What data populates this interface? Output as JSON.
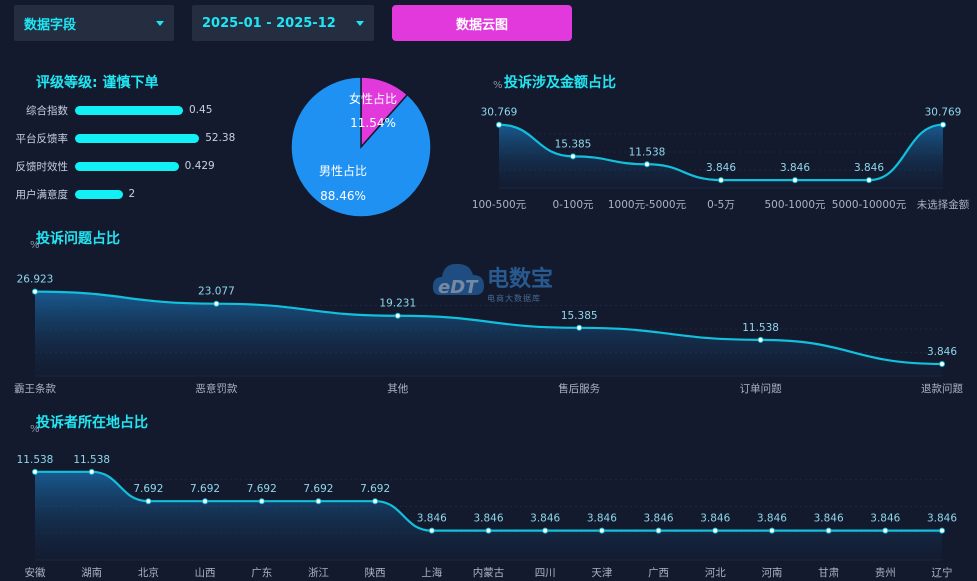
{
  "filters": {
    "field_select": "数据字段",
    "date_range": "2025-01 - 2025-12",
    "cloud_button": "数据云图"
  },
  "rating": {
    "title": "评级等级: 谨慎下单",
    "items": [
      {
        "label": "综合指数",
        "value": "0.45",
        "fill": 1.0
      },
      {
        "label": "平台反馈率",
        "value": "52.38",
        "fill": 1.15
      },
      {
        "label": "反馈时效性",
        "value": "0.429",
        "fill": 0.96
      },
      {
        "label": "用户满意度",
        "value": "2",
        "fill": 0.44
      }
    ]
  },
  "watermark": {
    "brand": "电数宝",
    "sub": "电商大数据库",
    "logo": "eDT"
  },
  "chart_data": [
    {
      "type": "pie",
      "slices": [
        {
          "name": "女性占比",
          "value": 11.54,
          "label": "11.54%",
          "color": "#e139dc"
        },
        {
          "name": "男性占比",
          "value": 88.46,
          "label": "88.46%",
          "color": "#1f91f3"
        }
      ]
    },
    {
      "type": "area",
      "title": "投诉涉及金额占比",
      "ylabel": "%",
      "categories": [
        "100-500元",
        "0-100元",
        "1000元-5000元",
        "0-5万",
        "500-1000元",
        "5000-10000元",
        "未选择金额"
      ],
      "values": [
        30.769,
        15.385,
        11.538,
        3.846,
        3.846,
        3.846,
        30.769
      ],
      "ylim": [
        0,
        35
      ]
    },
    {
      "type": "area",
      "title": "投诉问题占比",
      "ylabel": "%",
      "categories": [
        "霸王条款",
        "恶意罚款",
        "其他",
        "售后服务",
        "订单问题",
        "退款问题"
      ],
      "values": [
        26.923,
        23.077,
        19.231,
        15.385,
        11.538,
        3.846
      ],
      "ylim": [
        0,
        30
      ]
    },
    {
      "type": "area",
      "title": "投诉者所在地占比",
      "ylabel": "%",
      "categories": [
        "安徽",
        "湖南",
        "北京",
        "山西",
        "广东",
        "浙江",
        "陕西",
        "上海",
        "内蒙古",
        "四川",
        "天津",
        "广西",
        "河北",
        "河南",
        "甘肃",
        "贵州",
        "辽宁"
      ],
      "values": [
        11.538,
        11.538,
        7.692,
        7.692,
        7.692,
        7.692,
        7.692,
        3.846,
        3.846,
        3.846,
        3.846,
        3.846,
        3.846,
        3.846,
        3.846,
        3.846,
        3.846
      ],
      "ylim": [
        0,
        14
      ]
    }
  ],
  "colors": {
    "accent": "#22e6f2",
    "line": "#13c0dc",
    "magenta": "#e139dc",
    "blue": "#1f91f3"
  }
}
